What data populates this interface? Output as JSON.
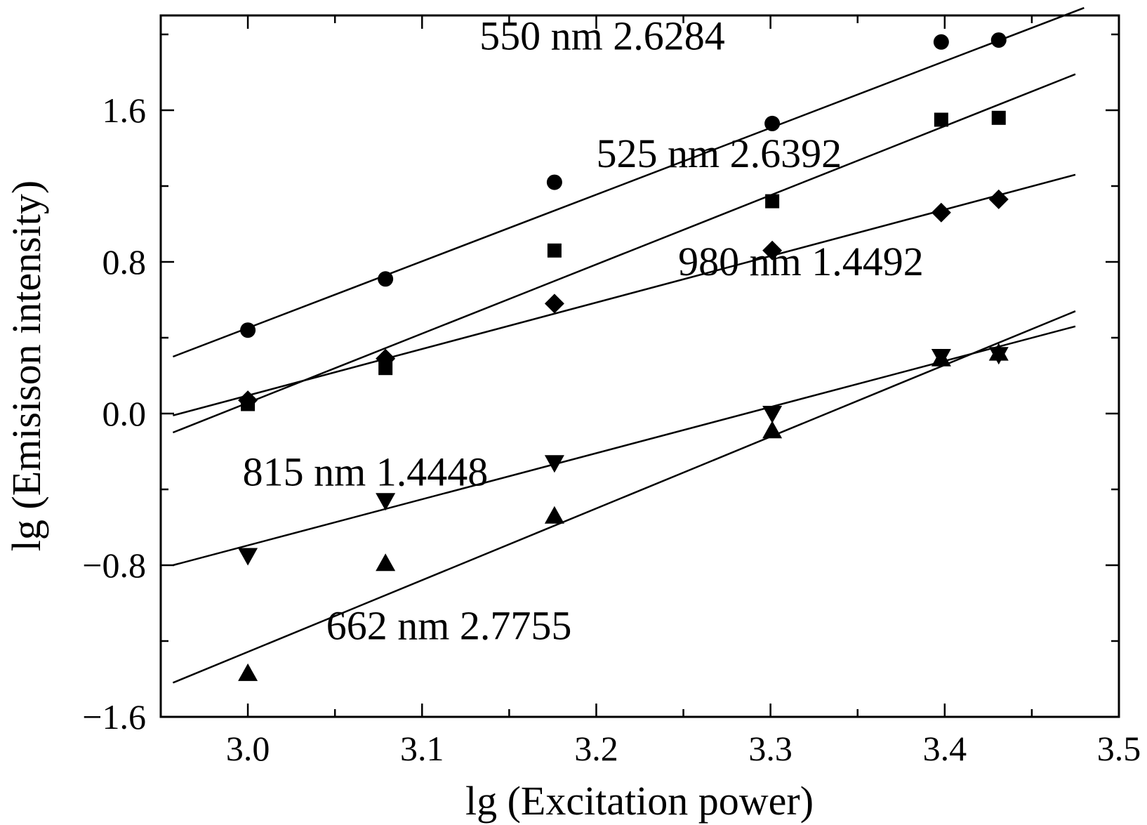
{
  "chart_data": {
    "type": "scatter",
    "xlabel": "lg (Excitation power)",
    "ylabel": "lg (Emisison intensity)",
    "xlim": [
      2.95,
      3.5
    ],
    "ylim": [
      -1.6,
      2.1
    ],
    "x_ticks": [
      3.0,
      3.1,
      3.2,
      3.3,
      3.4,
      3.5
    ],
    "x_tick_labels": [
      "3.0",
      "3.1",
      "3.2",
      "3.3",
      "3.4",
      "3.5"
    ],
    "y_ticks": [
      -1.6,
      -0.8,
      0.0,
      0.8,
      1.6
    ],
    "y_tick_labels": [
      "−1.6",
      "−0.8",
      "0.0",
      "0.8",
      "1.6"
    ],
    "x_minor_step": 0.05,
    "y_minor_step": 0.4,
    "grid": false,
    "legend": "none",
    "x": [
      3.0,
      3.079,
      3.176,
      3.301,
      3.398,
      3.431
    ],
    "series": [
      {
        "label": "550 nm  2.6284",
        "marker": "circle",
        "values": [
          0.44,
          0.71,
          1.22,
          1.53,
          1.96,
          1.97
        ],
        "fit": {
          "x": [
            2.957,
            3.48
          ],
          "y": [
            0.3,
            2.14
          ]
        },
        "label_anchor": {
          "x": 3.133,
          "y": 1.92
        }
      },
      {
        "label": "525 nm  2.6392",
        "marker": "square",
        "values": [
          0.05,
          0.24,
          0.86,
          1.12,
          1.55,
          1.56
        ],
        "fit": {
          "x": [
            2.957,
            3.475
          ],
          "y": [
            -0.1,
            1.79
          ]
        },
        "label_anchor": {
          "x": 3.2,
          "y": 1.3
        }
      },
      {
        "label": "980 nm  1.4492",
        "marker": "diamond",
        "values": [
          0.07,
          0.29,
          0.58,
          0.86,
          1.06,
          1.13
        ],
        "fit": {
          "x": [
            2.957,
            3.475
          ],
          "y": [
            -0.01,
            1.26
          ]
        },
        "label_anchor": {
          "x": 3.247,
          "y": 0.73
        }
      },
      {
        "label": "815 nm  1.4448",
        "marker": "triangle-down",
        "values": [
          -0.75,
          -0.46,
          -0.26,
          0.0,
          0.3,
          0.31
        ],
        "fit": {
          "x": [
            2.957,
            3.475
          ],
          "y": [
            -0.8,
            0.46
          ]
        },
        "label_anchor": {
          "x": 2.997,
          "y": -0.38
        }
      },
      {
        "label": "662 nm  2.7755",
        "marker": "triangle-up",
        "values": [
          -1.37,
          -0.79,
          -0.54,
          -0.09,
          0.29,
          0.32
        ],
        "fit": {
          "x": [
            2.957,
            3.475
          ],
          "y": [
            -1.42,
            0.54
          ]
        },
        "label_anchor": {
          "x": 3.045,
          "y": -1.19
        }
      }
    ]
  }
}
